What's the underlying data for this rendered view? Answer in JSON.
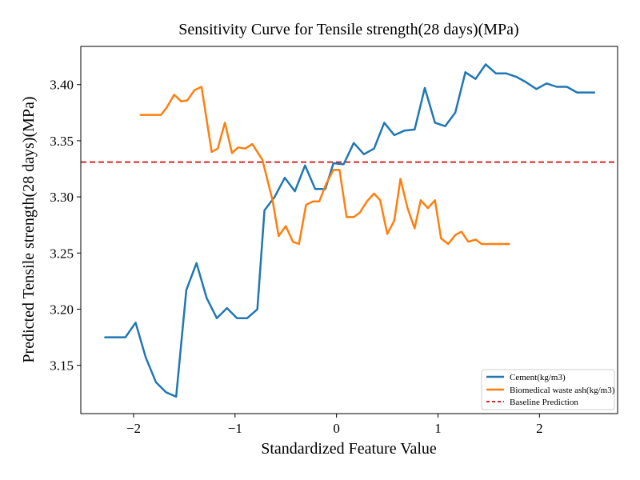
{
  "chart_data": {
    "type": "line",
    "title": "Sensitivity Curve for Tensile strength(28 days)(MPa)",
    "xlabel": "Standardized Feature Value",
    "ylabel": "Predicted Tensile strength(28 days)(MPa)",
    "xlim": [
      -2.52,
      2.77
    ],
    "ylim": [
      3.107,
      3.434
    ],
    "xticks": [
      -2,
      -1,
      0,
      1,
      2
    ],
    "xtick_labels": [
      "−2",
      "−1",
      "0",
      "1",
      "2"
    ],
    "yticks": [
      3.15,
      3.2,
      3.25,
      3.3,
      3.35,
      3.4
    ],
    "ytick_labels": [
      "3.15",
      "3.20",
      "3.25",
      "3.30",
      "3.35",
      "3.40"
    ],
    "grid": false,
    "legend_position": "lower-right",
    "baseline": {
      "name": "Baseline Prediction",
      "value": 3.331,
      "color": "#d62728",
      "style": "dashed"
    },
    "series": [
      {
        "name": "Cement(kg/m3)",
        "color": "#1f77b4",
        "x": [
          -2.28,
          -2.18,
          -2.08,
          -1.98,
          -1.88,
          -1.78,
          -1.68,
          -1.58,
          -1.48,
          -1.38,
          -1.28,
          -1.18,
          -1.08,
          -0.98,
          -0.88,
          -0.78,
          -0.71,
          -0.61,
          -0.51,
          -0.41,
          -0.31,
          -0.21,
          -0.11,
          -0.03,
          0.07,
          0.17,
          0.27,
          0.37,
          0.47,
          0.57,
          0.67,
          0.77,
          0.87,
          0.97,
          1.07,
          1.17,
          1.27,
          1.37,
          1.47,
          1.57,
          1.67,
          1.77,
          1.87,
          1.97,
          2.07,
          2.17,
          2.27,
          2.37,
          2.47,
          2.54
        ],
        "values": [
          3.175,
          3.175,
          3.175,
          3.188,
          3.157,
          3.135,
          3.126,
          3.122,
          3.217,
          3.241,
          3.21,
          3.192,
          3.201,
          3.192,
          3.192,
          3.2,
          3.288,
          3.3,
          3.317,
          3.305,
          3.328,
          3.307,
          3.307,
          3.33,
          3.329,
          3.348,
          3.338,
          3.343,
          3.366,
          3.355,
          3.359,
          3.36,
          3.397,
          3.366,
          3.363,
          3.375,
          3.411,
          3.405,
          3.418,
          3.41,
          3.41,
          3.407,
          3.402,
          3.396,
          3.401,
          3.398,
          3.398,
          3.393,
          3.393,
          3.393
        ]
      },
      {
        "name": "Biomedical waste ash(kg/m3)",
        "color": "#ff7f0e",
        "x": [
          -1.93,
          -1.83,
          -1.73,
          -1.67,
          -1.6,
          -1.53,
          -1.47,
          -1.4,
          -1.33,
          -1.23,
          -1.17,
          -1.1,
          -1.03,
          -0.97,
          -0.9,
          -0.83,
          -0.73,
          -0.63,
          -0.57,
          -0.5,
          -0.43,
          -0.37,
          -0.3,
          -0.23,
          -0.17,
          -0.1,
          -0.03,
          0.03,
          0.1,
          0.17,
          0.23,
          0.3,
          0.37,
          0.43,
          0.5,
          0.57,
          0.63,
          0.7,
          0.77,
          0.83,
          0.9,
          0.97,
          1.03,
          1.1,
          1.17,
          1.23,
          1.3,
          1.37,
          1.43,
          1.5,
          1.57,
          1.63,
          1.7
        ],
        "values": [
          3.373,
          3.373,
          3.373,
          3.38,
          3.391,
          3.385,
          3.386,
          3.395,
          3.398,
          3.34,
          3.343,
          3.366,
          3.339,
          3.344,
          3.343,
          3.347,
          3.333,
          3.297,
          3.265,
          3.274,
          3.26,
          3.258,
          3.293,
          3.296,
          3.296,
          3.312,
          3.324,
          3.324,
          3.282,
          3.282,
          3.286,
          3.296,
          3.303,
          3.297,
          3.267,
          3.279,
          3.316,
          3.29,
          3.272,
          3.297,
          3.29,
          3.297,
          3.263,
          3.258,
          3.266,
          3.269,
          3.26,
          3.262,
          3.258,
          3.258,
          3.258,
          3.258,
          3.258
        ]
      }
    ]
  }
}
